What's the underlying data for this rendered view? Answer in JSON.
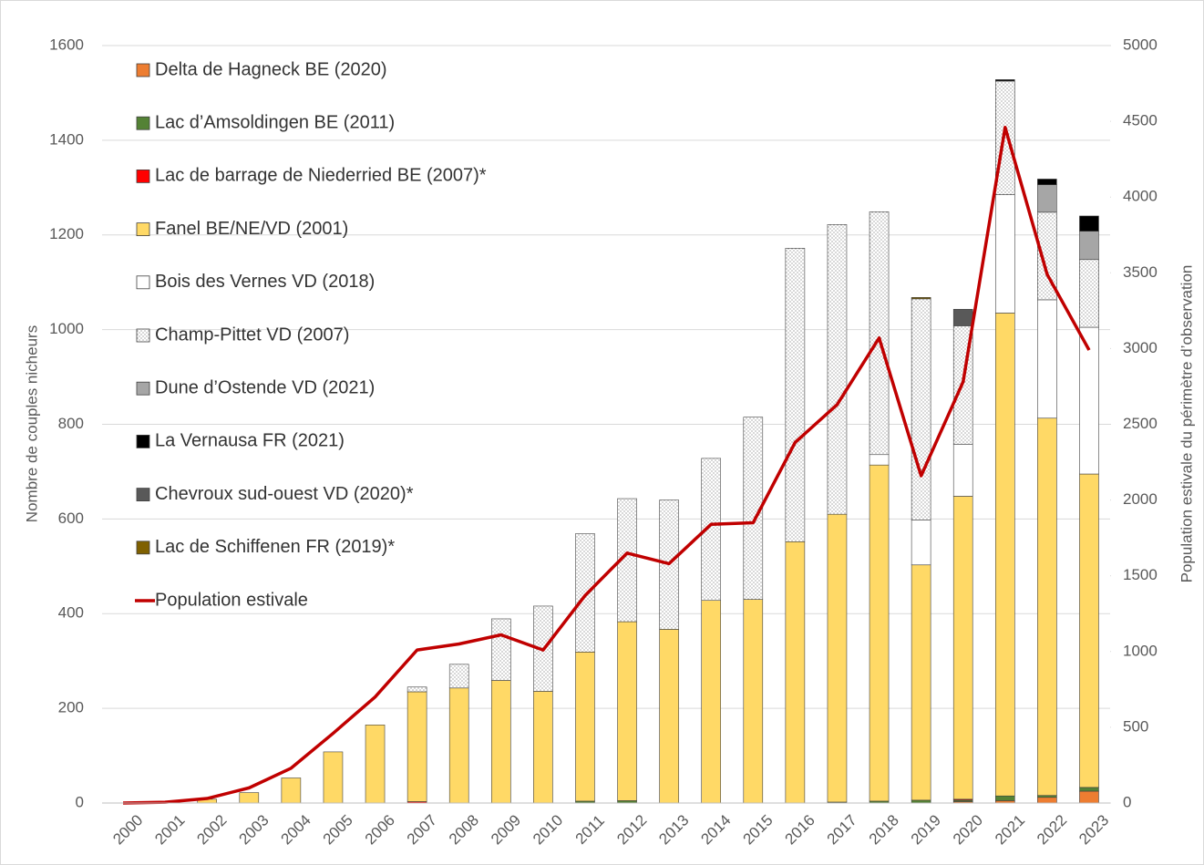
{
  "chart_data": {
    "type": "bar",
    "stacked": true,
    "grid": true,
    "ylabel": "Nombre de couples nicheurs",
    "y2label": "Population estivale du périmètre d’observation",
    "categories": [
      "2000",
      "2001",
      "2002",
      "2003",
      "2004",
      "2005",
      "2006",
      "2007",
      "2008",
      "2009",
      "2010",
      "2011",
      "2012",
      "2013",
      "2014",
      "2015",
      "2016",
      "2017",
      "2018",
      "2019",
      "2020",
      "2021",
      "2022",
      "2023"
    ],
    "ylim": [
      0,
      1600
    ],
    "yticks": [
      0,
      200,
      400,
      600,
      800,
      1000,
      1200,
      1400,
      1600
    ],
    "y2lim": [
      0,
      5000
    ],
    "y2ticks": [
      0,
      500,
      1000,
      1500,
      2000,
      2500,
      3000,
      3500,
      4000,
      4500,
      5000
    ],
    "legend": "upper left",
    "series": [
      {
        "name": "Delta de Hagneck BE (2020)",
        "color": "#ed7d31",
        "values": [
          0,
          0,
          0,
          0,
          0,
          0,
          0,
          0,
          0,
          0,
          0,
          0,
          0,
          0,
          0,
          0,
          0,
          0,
          0,
          0,
          3,
          5,
          12,
          25
        ]
      },
      {
        "name": "Lac d’Amsoldingen BE (2011)",
        "color": "#548235",
        "values": [
          0,
          0,
          0,
          0,
          0,
          0,
          0,
          0,
          0,
          0,
          0,
          4,
          5,
          0,
          0,
          0,
          0,
          2,
          4,
          6,
          3,
          10,
          4,
          8
        ]
      },
      {
        "name": "Lac de barrage de Niederried BE (2007)*",
        "color": "#ff0000",
        "values": [
          0,
          0,
          0,
          0,
          0,
          0,
          0,
          3,
          0,
          0,
          0,
          0,
          0,
          0,
          0,
          0,
          0,
          0,
          0,
          0,
          2,
          0,
          0,
          0
        ]
      },
      {
        "name": "Fanel BE/NE/VD (2001)",
        "color": "#ffd966",
        "values": [
          0,
          1,
          8,
          22,
          53,
          108,
          165,
          232,
          243,
          259,
          236,
          315,
          378,
          367,
          428,
          430,
          552,
          608,
          710,
          497,
          640,
          1020,
          797,
          662
        ]
      },
      {
        "name": "Bois des Vernes VD (2018)",
        "color": "#ffffff",
        "values": [
          0,
          0,
          0,
          0,
          0,
          0,
          0,
          0,
          0,
          0,
          0,
          0,
          0,
          0,
          0,
          0,
          0,
          0,
          22,
          95,
          110,
          250,
          250,
          310
        ]
      },
      {
        "name": "Champ-Pittet VD (2007)",
        "color": "#ffffff",
        "pattern": "dots",
        "values": [
          0,
          0,
          0,
          0,
          0,
          0,
          0,
          10,
          50,
          130,
          180,
          250,
          260,
          273,
          300,
          385,
          620,
          612,
          513,
          467,
          250,
          240,
          185,
          143
        ]
      },
      {
        "name": "Dune d’Ostende VD (2021)",
        "color": "#a6a6a6",
        "values": [
          0,
          0,
          0,
          0,
          0,
          0,
          0,
          0,
          0,
          0,
          0,
          0,
          0,
          0,
          0,
          0,
          0,
          0,
          0,
          0,
          0,
          0,
          58,
          60
        ]
      },
      {
        "name": "La Vernausa FR (2021)",
        "color": "#000000",
        "values": [
          0,
          0,
          0,
          0,
          0,
          0,
          0,
          0,
          0,
          0,
          0,
          0,
          0,
          0,
          0,
          0,
          0,
          0,
          0,
          0,
          0,
          3,
          12,
          32
        ]
      },
      {
        "name": "Chevroux sud-ouest VD (2020)*",
        "color": "#595959",
        "values": [
          0,
          0,
          0,
          0,
          0,
          0,
          0,
          0,
          0,
          0,
          0,
          0,
          0,
          0,
          0,
          0,
          0,
          0,
          0,
          0,
          35,
          0,
          0,
          0
        ]
      },
      {
        "name": "Lac de Schiffenen FR (2019)*",
        "color": "#7f6000",
        "values": [
          0,
          0,
          0,
          0,
          0,
          0,
          0,
          0,
          0,
          0,
          0,
          0,
          0,
          0,
          0,
          0,
          0,
          0,
          0,
          3,
          0,
          0,
          0,
          0
        ]
      },
      {
        "name": "Population estivale",
        "type": "line",
        "axis": "y2",
        "color": "#c00000",
        "values": [
          0,
          5,
          30,
          100,
          230,
          460,
          700,
          1010,
          1050,
          1110,
          1010,
          1370,
          1650,
          1580,
          1840,
          1850,
          2380,
          2630,
          3070,
          2160,
          2780,
          4460,
          3490,
          2990
        ]
      }
    ]
  }
}
